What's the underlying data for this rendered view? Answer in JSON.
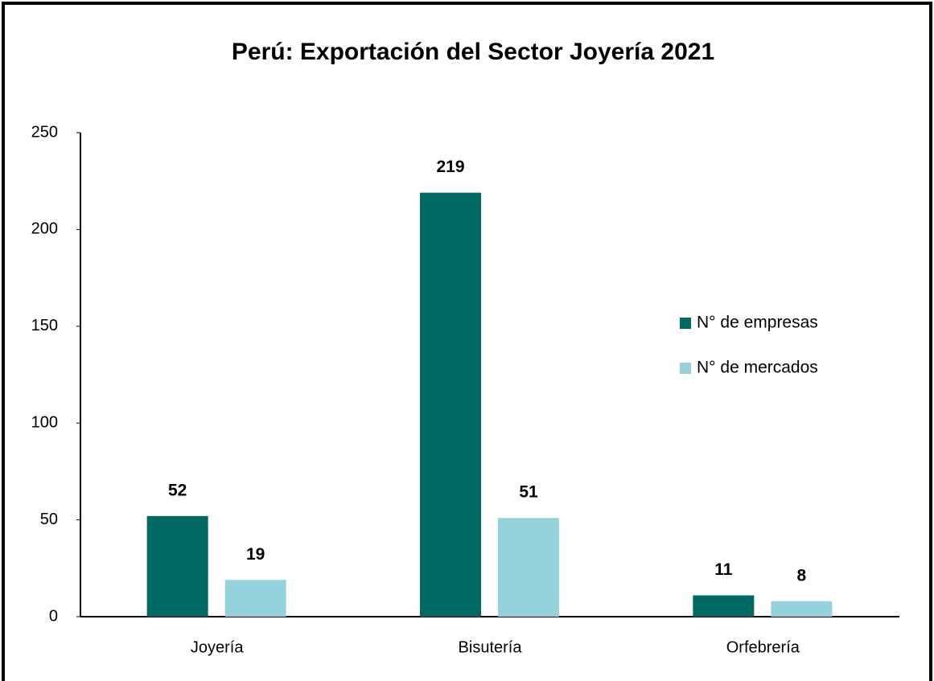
{
  "chart_data": {
    "type": "bar",
    "title": "Perú: Exportación del Sector Joyería 2021",
    "categories": [
      "Joyería",
      "Bisutería",
      "Orfebrería"
    ],
    "series": [
      {
        "name": "N° de empresas",
        "color": "#006964",
        "values": [
          52,
          219,
          11
        ]
      },
      {
        "name": "N° de mercados",
        "color": "#95d3dc",
        "values": [
          19,
          51,
          8
        ]
      }
    ],
    "ylim": [
      0,
      250
    ],
    "yticks": [
      0,
      50,
      100,
      150,
      200,
      250
    ],
    "grid": false
  }
}
